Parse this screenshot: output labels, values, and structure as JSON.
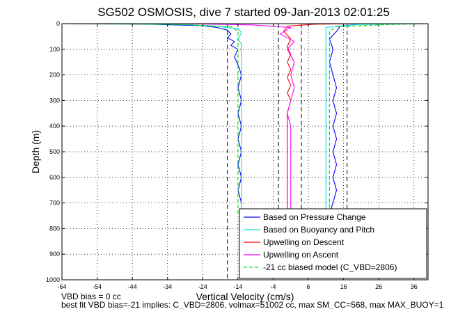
{
  "chart_data": {
    "type": "line",
    "title": "SG502 OSMOSIS, dive 7 started 09-Jan-2013 02:01:25",
    "xlabel": "Vertical Velocity (cm/s)",
    "ylabel": "Depth (m)",
    "xlim": [
      -64,
      40
    ],
    "ylim": [
      1000,
      0
    ],
    "y_reversed": true,
    "grid": true,
    "legend_position": "bottom-right",
    "xticks": [
      -64,
      -54,
      -44,
      -34,
      -24,
      -14,
      -4,
      6,
      16,
      26,
      36
    ],
    "yticks": [
      0,
      100,
      200,
      300,
      400,
      500,
      600,
      700,
      800,
      900,
      1000
    ],
    "series": [
      {
        "name": "Based on Pressure Change",
        "color": "#0000ff",
        "style": "solid",
        "points": [
          [
            -64,
            0
          ],
          [
            -40,
            2
          ],
          [
            -24,
            8
          ],
          [
            -20,
            15
          ],
          [
            -17,
            25
          ],
          [
            -16,
            40
          ],
          [
            -17,
            55
          ],
          [
            -15,
            70
          ],
          [
            -16,
            85
          ],
          [
            -14,
            100
          ],
          [
            -15,
            130
          ],
          [
            -14,
            160
          ],
          [
            -13,
            200
          ],
          [
            -14,
            250
          ],
          [
            -13,
            300
          ],
          [
            -14,
            350
          ],
          [
            -13,
            400
          ],
          [
            -14,
            450
          ],
          [
            -13,
            500
          ],
          [
            -14,
            550
          ],
          [
            -13,
            600
          ],
          [
            -14,
            650
          ],
          [
            -13,
            700
          ],
          [
            -13,
            740
          ],
          [
            12,
            740
          ],
          [
            13,
            700
          ],
          [
            14,
            650
          ],
          [
            13,
            600
          ],
          [
            14,
            550
          ],
          [
            13,
            500
          ],
          [
            14,
            450
          ],
          [
            13,
            400
          ],
          [
            14,
            350
          ],
          [
            13,
            300
          ],
          [
            14,
            250
          ],
          [
            13,
            200
          ],
          [
            12,
            150
          ],
          [
            13,
            100
          ],
          [
            12,
            60
          ],
          [
            14,
            30
          ],
          [
            15,
            10
          ],
          [
            20,
            2
          ],
          [
            40,
            0
          ]
        ]
      },
      {
        "name": "Based on Buoyancy and Pitch",
        "color": "#00e5e5",
        "style": "solid",
        "points": [
          [
            -50,
            0
          ],
          [
            -30,
            3
          ],
          [
            -20,
            10
          ],
          [
            -14,
            20
          ],
          [
            -13,
            35
          ],
          [
            -14,
            60
          ],
          [
            -13,
            80
          ],
          [
            -13,
            120
          ],
          [
            -13,
            200
          ],
          [
            -13,
            300
          ],
          [
            -13,
            400
          ],
          [
            -13,
            500
          ],
          [
            -13,
            600
          ],
          [
            -13,
            700
          ],
          [
            -13,
            740
          ],
          [
            11,
            740
          ],
          [
            11,
            700
          ],
          [
            11,
            600
          ],
          [
            11,
            500
          ],
          [
            11,
            400
          ],
          [
            11,
            300
          ],
          [
            11,
            200
          ],
          [
            11,
            120
          ],
          [
            11,
            80
          ],
          [
            11,
            40
          ],
          [
            11,
            15
          ],
          [
            20,
            3
          ],
          [
            40,
            0
          ]
        ]
      },
      {
        "name": "Upwelling on Descent",
        "color": "#ff0000",
        "style": "solid",
        "points": [
          [
            20,
            0
          ],
          [
            8,
            2
          ],
          [
            0,
            10
          ],
          [
            -1,
            30
          ],
          [
            1,
            60
          ],
          [
            0,
            90
          ],
          [
            1,
            120
          ],
          [
            0,
            150
          ],
          [
            1,
            180
          ],
          [
            0,
            210
          ],
          [
            1,
            240
          ],
          [
            0,
            270
          ],
          [
            1,
            300
          ],
          [
            0,
            350
          ],
          [
            0,
            400
          ],
          [
            0,
            450
          ],
          [
            0,
            500
          ],
          [
            0,
            550
          ],
          [
            0,
            600
          ],
          [
            0,
            650
          ],
          [
            0,
            700
          ],
          [
            0,
            740
          ]
        ]
      },
      {
        "name": "Upwelling on Ascent",
        "color": "#ff00ff",
        "style": "solid",
        "points": [
          [
            1,
            740
          ],
          [
            1,
            700
          ],
          [
            1,
            650
          ],
          [
            1,
            600
          ],
          [
            1,
            550
          ],
          [
            1,
            500
          ],
          [
            1,
            450
          ],
          [
            1,
            400
          ],
          [
            0,
            350
          ],
          [
            1,
            300
          ],
          [
            2,
            250
          ],
          [
            1,
            200
          ],
          [
            2,
            150
          ],
          [
            0,
            100
          ],
          [
            2,
            70
          ],
          [
            -2,
            40
          ],
          [
            1,
            15
          ],
          [
            -10,
            5
          ],
          [
            -30,
            0
          ]
        ]
      },
      {
        "name": "-21 cc biased model (C_VBD=2806)",
        "color": "#00dd00",
        "style": "dashed",
        "points": [
          [
            -64,
            0
          ],
          [
            -30,
            3
          ],
          [
            -16,
            12
          ],
          [
            -14,
            30
          ],
          [
            -14,
            80
          ],
          [
            -14,
            200
          ],
          [
            -14,
            400
          ],
          [
            -14,
            600
          ],
          [
            -14,
            740
          ],
          [
            12,
            740
          ],
          [
            12,
            600
          ],
          [
            12,
            400
          ],
          [
            12,
            200
          ],
          [
            12,
            80
          ],
          [
            12,
            30
          ],
          [
            14,
            12
          ],
          [
            30,
            3
          ],
          [
            40,
            0
          ]
        ]
      }
    ],
    "reference_lines": [
      {
        "x": -17,
        "style": "dashed",
        "color": "#000000"
      },
      {
        "x": 17,
        "style": "dashed",
        "color": "#000000"
      },
      {
        "x": -2.5,
        "style": "dashed",
        "color": "#000000"
      },
      {
        "x": 4,
        "style": "dashed",
        "color": "#000000"
      }
    ]
  },
  "footer": {
    "line1": "VBD bias = 0 cc",
    "line2": "best fit VBD bias=-21 implies: C_VBD=2806, volmax=51002 cc, max SM_CC=568, max MAX_BUOY=1"
  }
}
